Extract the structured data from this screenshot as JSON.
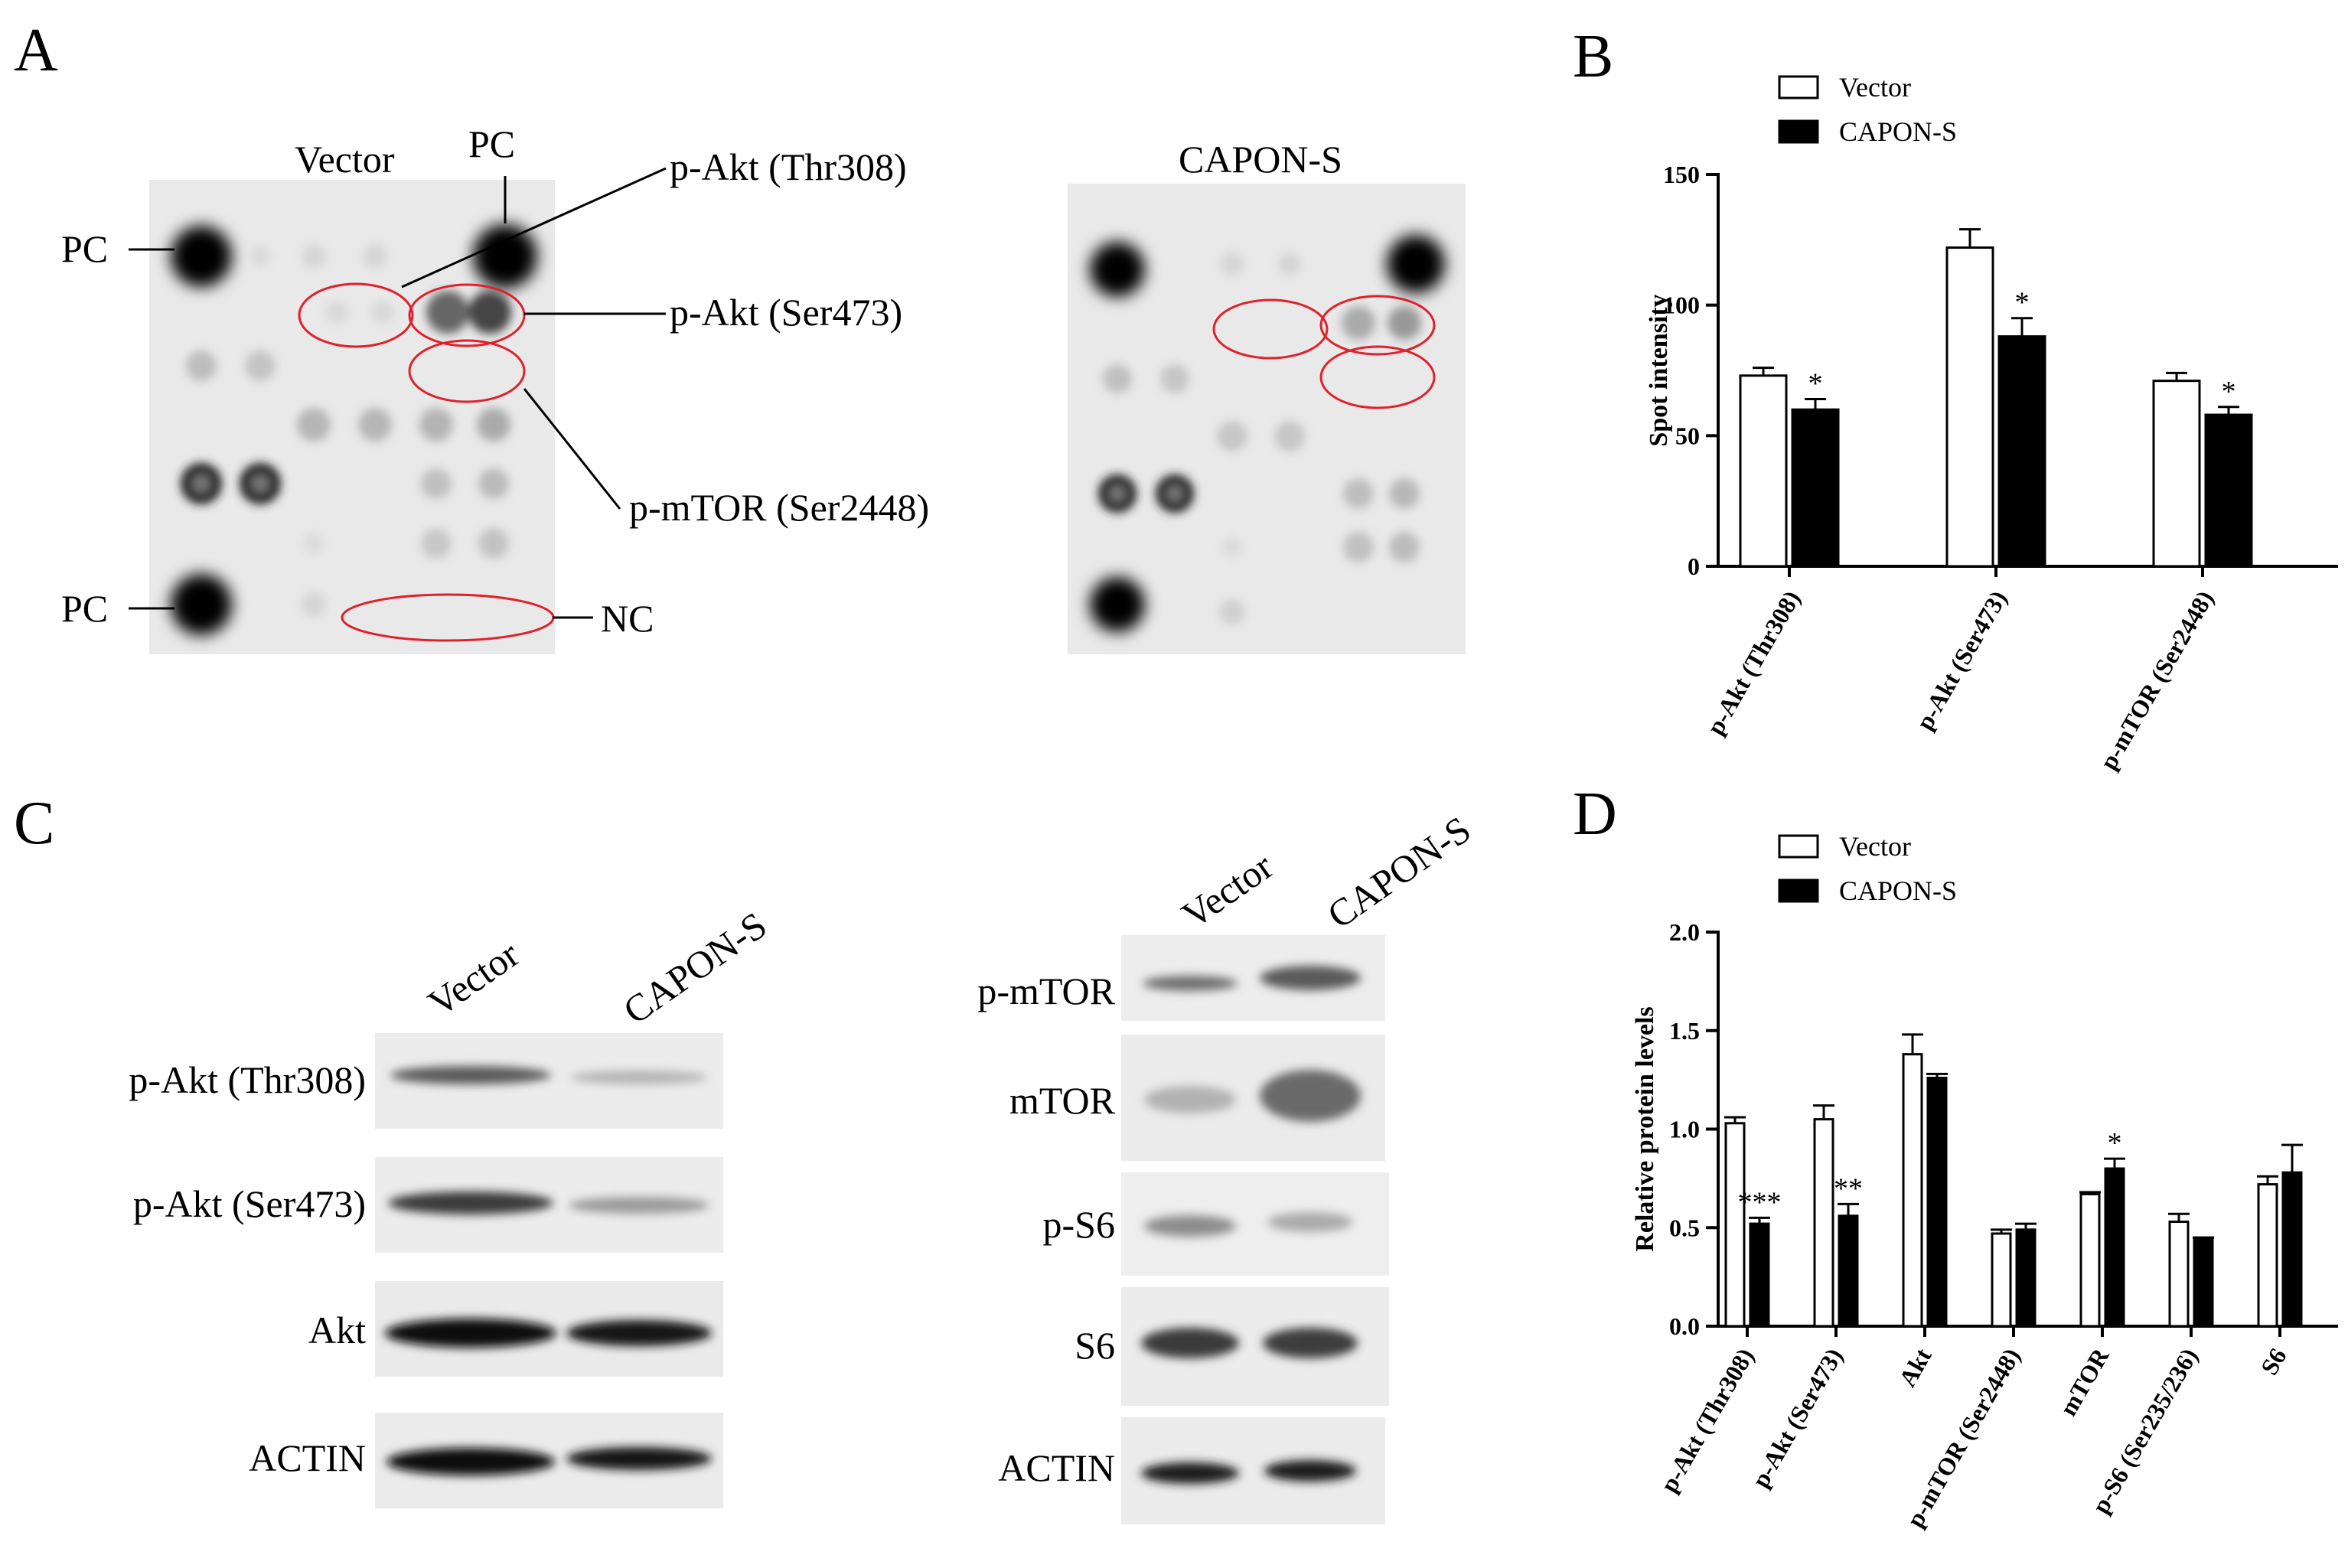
{
  "panels": {
    "A": {
      "letter": "A",
      "left_title": "Vector",
      "right_title": "CAPON-S",
      "pc_top_label": "PC",
      "pc_left_upper": "PC",
      "pc_left_lower": "PC",
      "nc_label": "NC",
      "callout_thr308": "p-Akt (Thr308)",
      "callout_ser473": "p-Akt (Ser473)",
      "callout_mtor": "p-mTOR (Ser2448)",
      "highlight_color": "#e0202a"
    },
    "C": {
      "letter": "C",
      "left_lanes": [
        "Vector",
        "CAPON-S"
      ],
      "left_rows": [
        "p-Akt (Thr308)",
        "p-Akt (Ser473)",
        "Akt",
        "ACTIN"
      ],
      "right_lanes": [
        "Vector",
        "CAPON-S"
      ],
      "right_rows": [
        "p-mTOR",
        "mTOR",
        "p-S6",
        "S6",
        "ACTIN"
      ]
    }
  },
  "chart_data": [
    {
      "panel": "B",
      "type": "bar",
      "ylabel": "Spot intensity",
      "ylim": [
        0,
        150
      ],
      "yticks": [
        "0",
        "50",
        "100",
        "150"
      ],
      "categories": [
        "p-Akt (Thr308)",
        "p-Akt (Ser473)",
        "p-mTOR (Ser2448)"
      ],
      "series": [
        {
          "name": "Vector",
          "color": "#ffffff",
          "values": [
            73,
            122,
            71
          ],
          "errors": [
            3,
            7,
            3
          ]
        },
        {
          "name": "CAPON-S",
          "color": "#000000",
          "values": [
            60,
            88,
            58
          ],
          "errors": [
            4,
            7,
            3
          ]
        }
      ],
      "significance": [
        "*",
        "*",
        "*"
      ],
      "legend_position": "top-left"
    },
    {
      "panel": "D",
      "type": "bar",
      "ylabel": "Relative protein levels",
      "ylim": [
        0,
        2.0
      ],
      "yticks": [
        "0.0",
        "0.5",
        "1.0",
        "1.5",
        "2.0"
      ],
      "categories": [
        "p-Akt (Thr308)",
        "p-Akt (Ser473)",
        "Akt",
        "p-mTOR (Ser2448)",
        "mTOR",
        "p-S6 (Ser235/236)",
        "S6"
      ],
      "series": [
        {
          "name": "Vector",
          "color": "#ffffff",
          "values": [
            1.03,
            1.05,
            1.38,
            0.47,
            0.67,
            0.53,
            0.72
          ],
          "errors": [
            0.03,
            0.07,
            0.1,
            0.02,
            0.01,
            0.04,
            0.04
          ]
        },
        {
          "name": "CAPON-S",
          "color": "#000000",
          "values": [
            0.52,
            0.56,
            1.26,
            0.49,
            0.8,
            0.44,
            0.78
          ],
          "errors": [
            0.03,
            0.06,
            0.02,
            0.03,
            0.05,
            0.01,
            0.14
          ]
        }
      ],
      "significance": [
        "***",
        "**",
        "",
        "",
        "*",
        "",
        ""
      ],
      "legend_position": "top-left"
    }
  ]
}
